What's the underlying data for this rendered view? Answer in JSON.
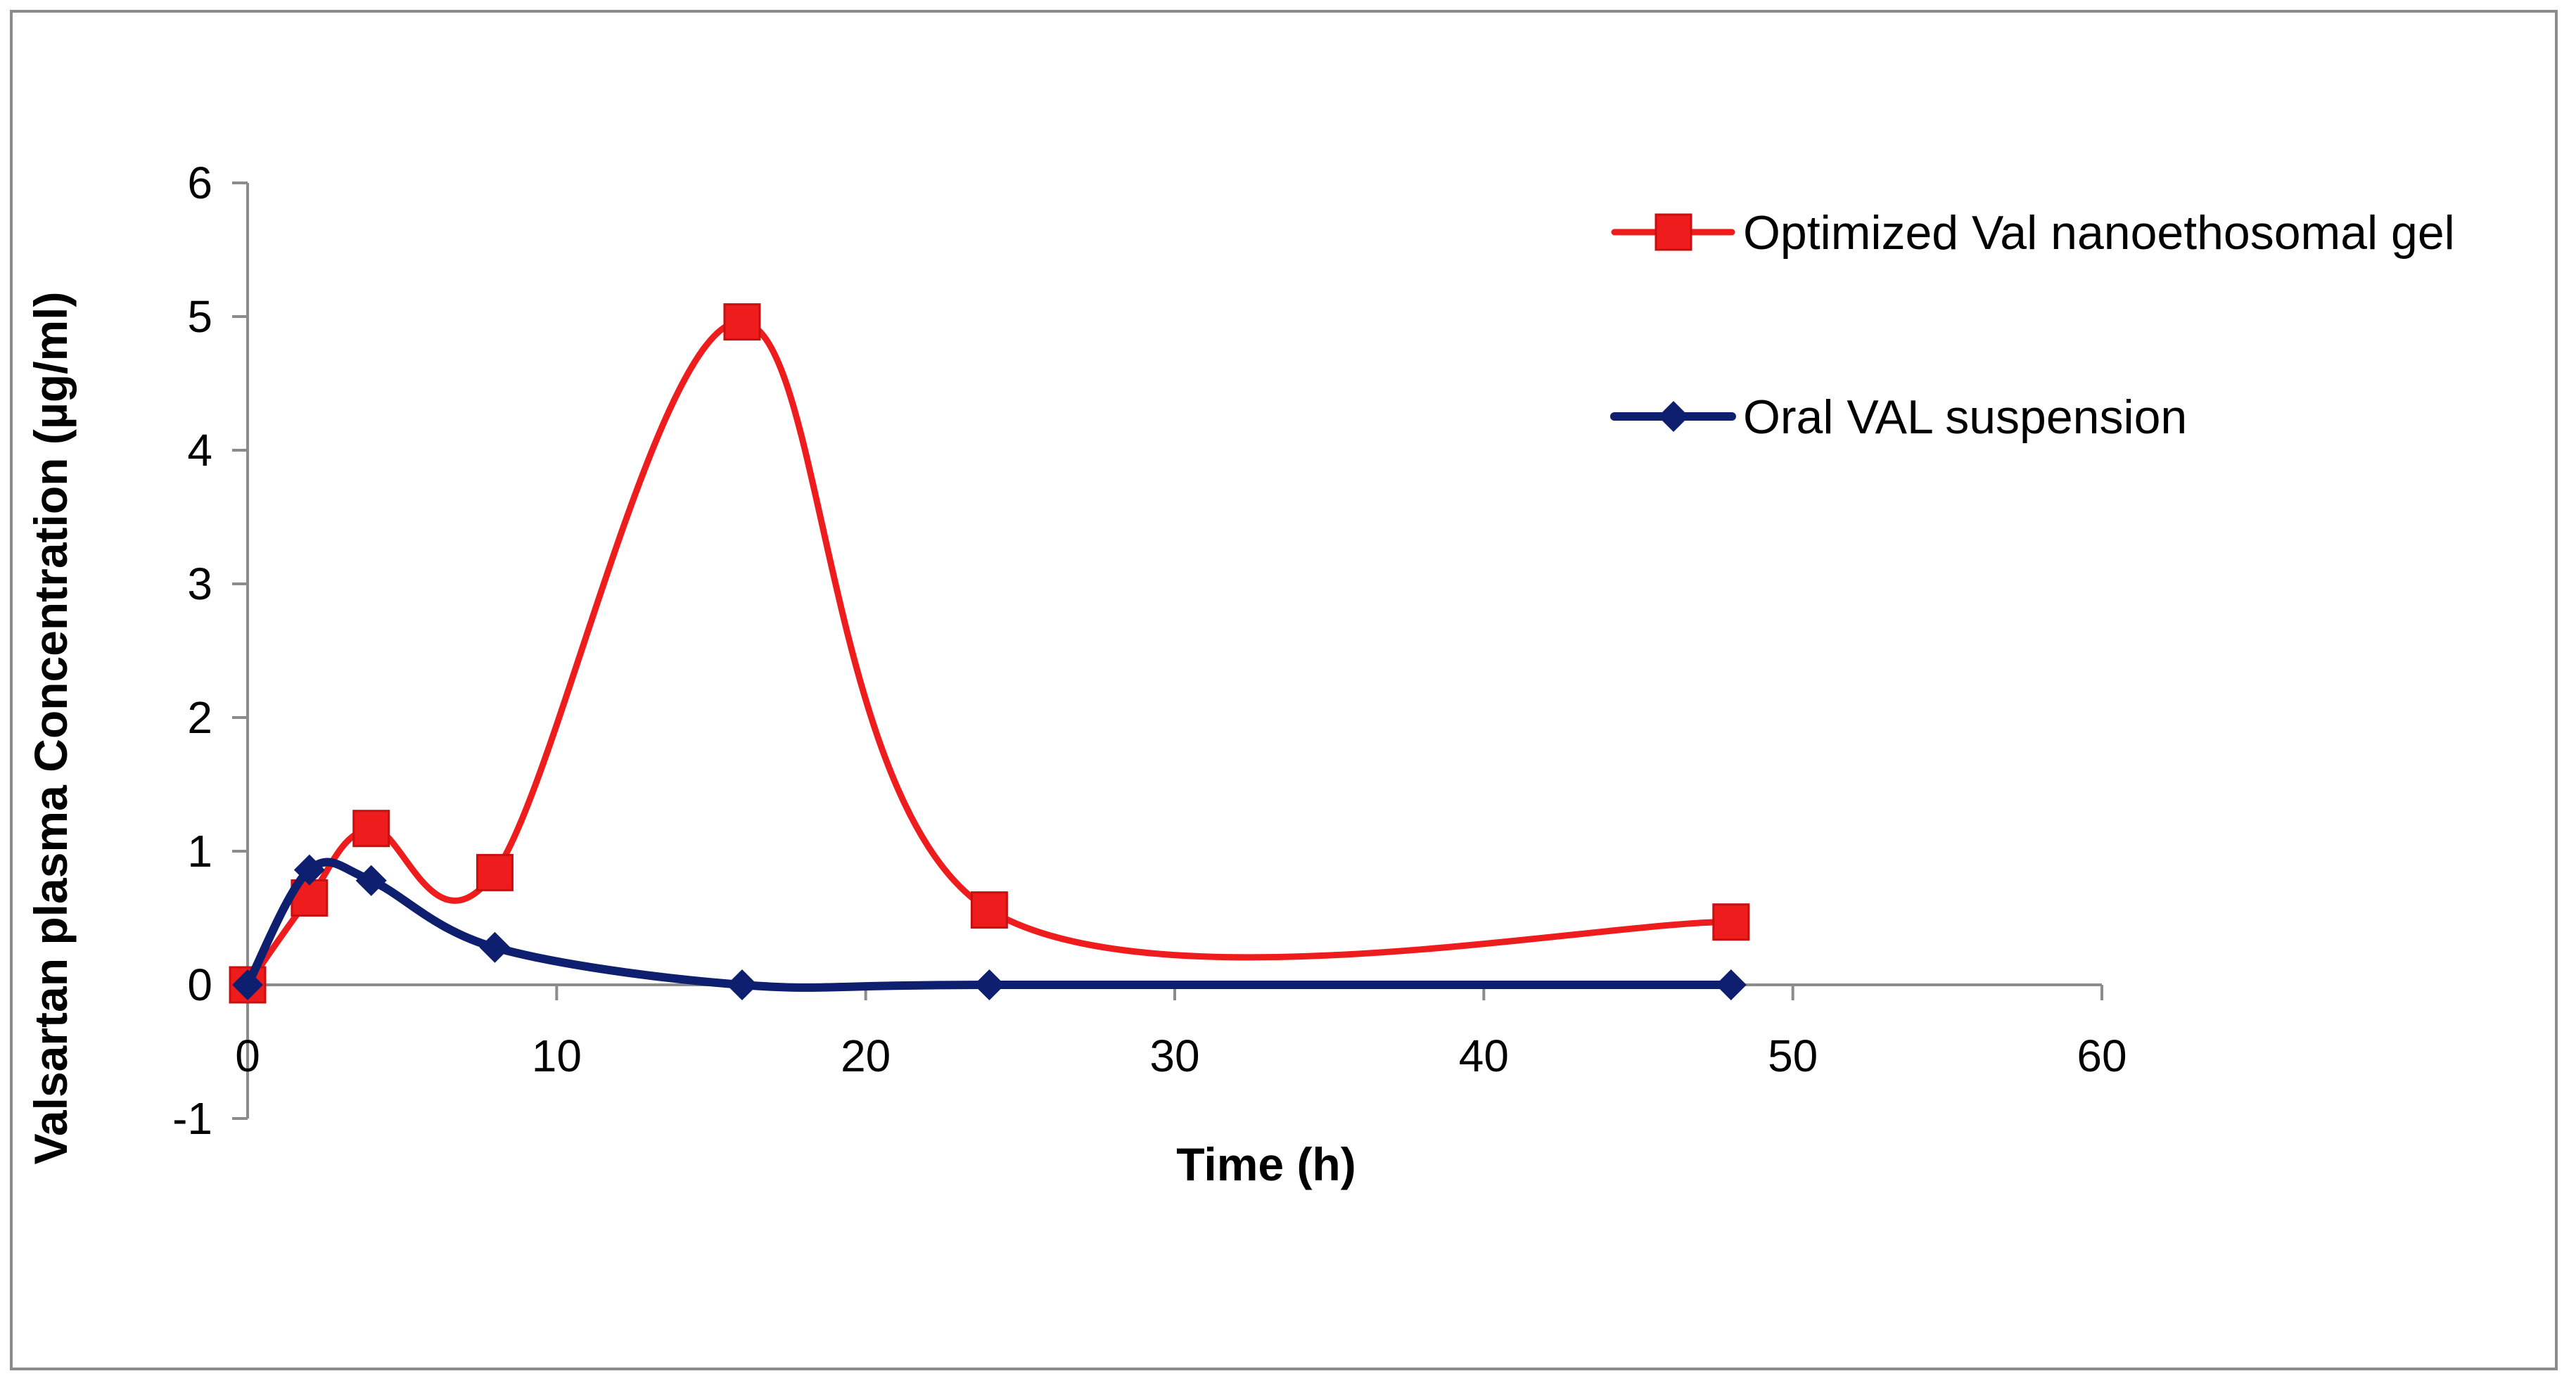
{
  "chart_data": {
    "type": "line",
    "title": "",
    "xlabel": "Time (h)",
    "ylabel": "Valsartan plasma Concentration (µg/ml)",
    "xlim": [
      0,
      60
    ],
    "ylim": [
      -1,
      6
    ],
    "xticks": [
      0,
      10,
      20,
      30,
      40,
      50,
      60
    ],
    "yticks": [
      -1,
      0,
      1,
      2,
      3,
      4,
      5,
      6
    ],
    "grid": false,
    "smooth": true,
    "legend_position": "top-right",
    "series": [
      {
        "name": "Optimized Val nanoethosomal gel",
        "color": "#ee1c1c",
        "marker": "square",
        "x": [
          0,
          2,
          4,
          8,
          16,
          24,
          48
        ],
        "y": [
          0,
          0.65,
          1.17,
          0.84,
          4.96,
          0.56,
          0.47
        ]
      },
      {
        "name": "Oral VAL suspension",
        "color": "#0d1f6e",
        "marker": "diamond",
        "x": [
          0,
          2,
          4,
          8,
          16,
          24,
          48
        ],
        "y": [
          0,
          0.86,
          0.78,
          0.28,
          0.0,
          0.0,
          0.0
        ]
      }
    ]
  }
}
